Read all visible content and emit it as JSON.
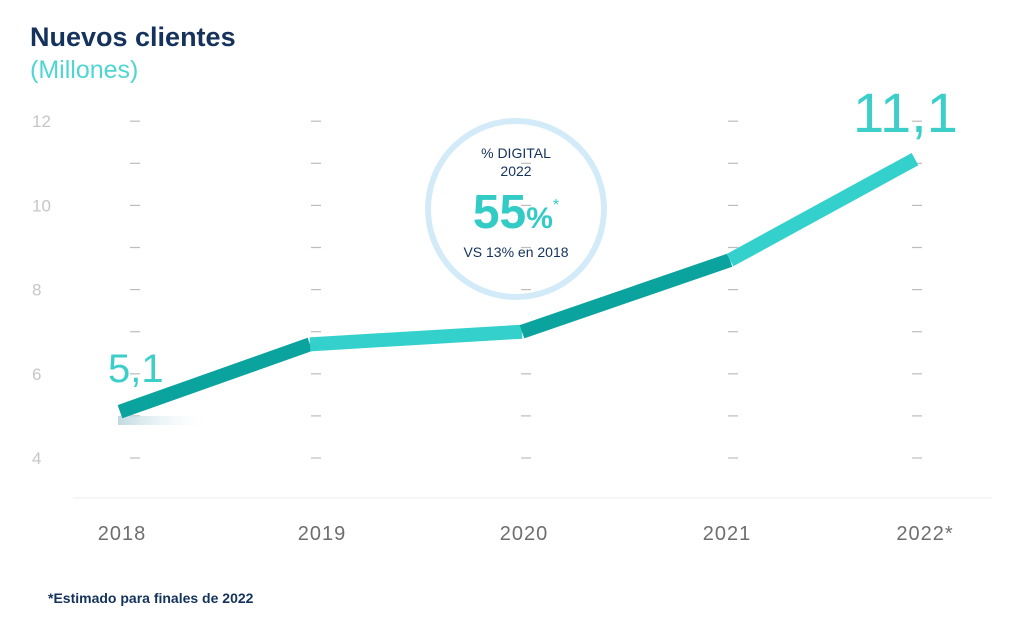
{
  "chart_data": {
    "type": "line",
    "title": "Nuevos clientes",
    "subtitle": "(Millones)",
    "categories": [
      "2018",
      "2019",
      "2020",
      "2021",
      "2022*"
    ],
    "series": [
      {
        "values": [
          5.1,
          6.7,
          7.0,
          8.7,
          11.1
        ]
      }
    ],
    "y_ticks": [
      "4",
      "6",
      "8",
      "10",
      "12"
    ],
    "ylim": [
      4,
      12
    ],
    "grid": false,
    "start_label": "5,1",
    "end_label": "11,1",
    "colors": {
      "dark": "#0aa39e",
      "light": "#34d1cc",
      "title": "#14325c"
    }
  },
  "badge": {
    "line1": "% DIGITAL",
    "line2": "2022",
    "value": "55",
    "unit": "%",
    "asterisk": "*",
    "comparison": "VS 13% en 2018"
  },
  "footnote": "*Estimado para finales de 2022"
}
